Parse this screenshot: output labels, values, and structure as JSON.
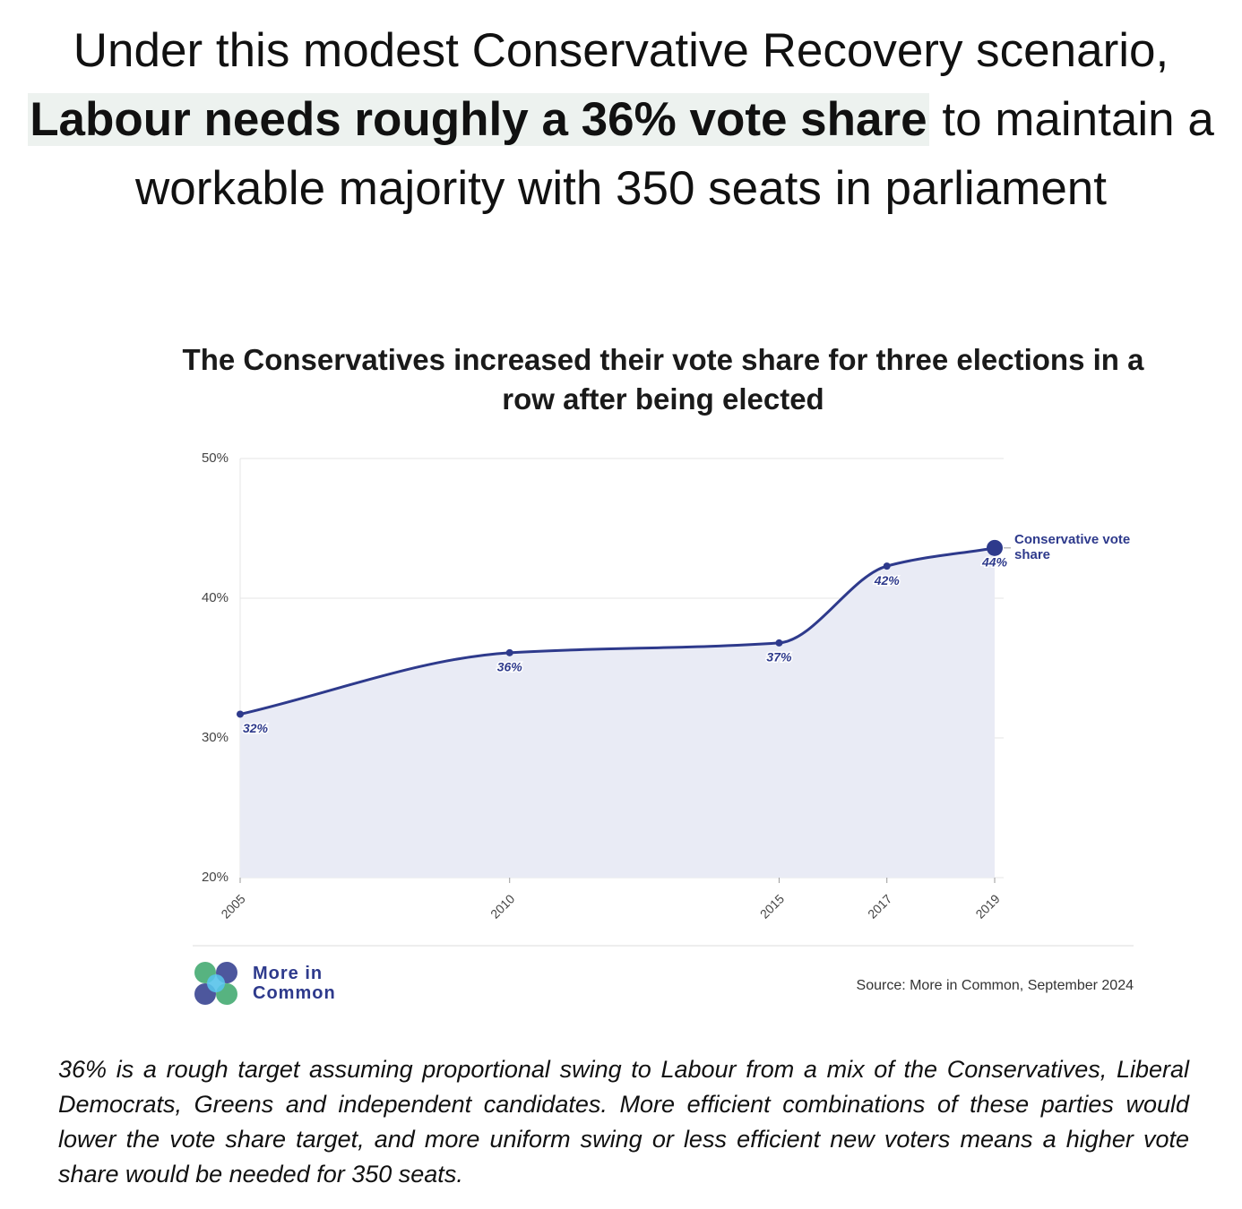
{
  "headline": {
    "before": "Under this modest Conservative Recovery scenario,",
    "highlight": "Labour needs roughly a 36% vote share",
    "after": "to maintain a workable majority with 350 seats in parliament"
  },
  "chart_data": {
    "type": "line",
    "title": "The Conservatives increased their vote share for three elections in a row after being elected",
    "x": [
      2005,
      2010,
      2015,
      2017,
      2019
    ],
    "series": [
      {
        "name": "Conservative vote share",
        "color": "#2e3a8c",
        "fill": "#e9ebf5",
        "values": [
          31.7,
          36.1,
          36.8,
          42.3,
          43.6
        ],
        "value_labels": [
          "32%",
          "36%",
          "37%",
          "42%",
          "44%"
        ]
      }
    ],
    "xlim": [
      2005,
      2019
    ],
    "xticks": [
      2005,
      2010,
      2015,
      2017,
      2019
    ],
    "ylim": [
      20,
      50
    ],
    "yticks": [
      {
        "value": 20,
        "label": "20%"
      },
      {
        "value": 30,
        "label": "30%"
      },
      {
        "value": 40,
        "label": "40%"
      },
      {
        "value": 50,
        "label": "50%"
      }
    ],
    "grid": true,
    "logo": "More in Common",
    "source": "Source: More in Common, September 2024"
  },
  "footnote": "36% is a rough target assuming proportional swing to Labour from a mix of the Conservatives, Liberal Democrats, Greens and independent candidates. More efficient combinations of these parties would lower the vote share target, and more uniform swing or less efficient new voters means a higher vote share would be needed for 350 seats."
}
